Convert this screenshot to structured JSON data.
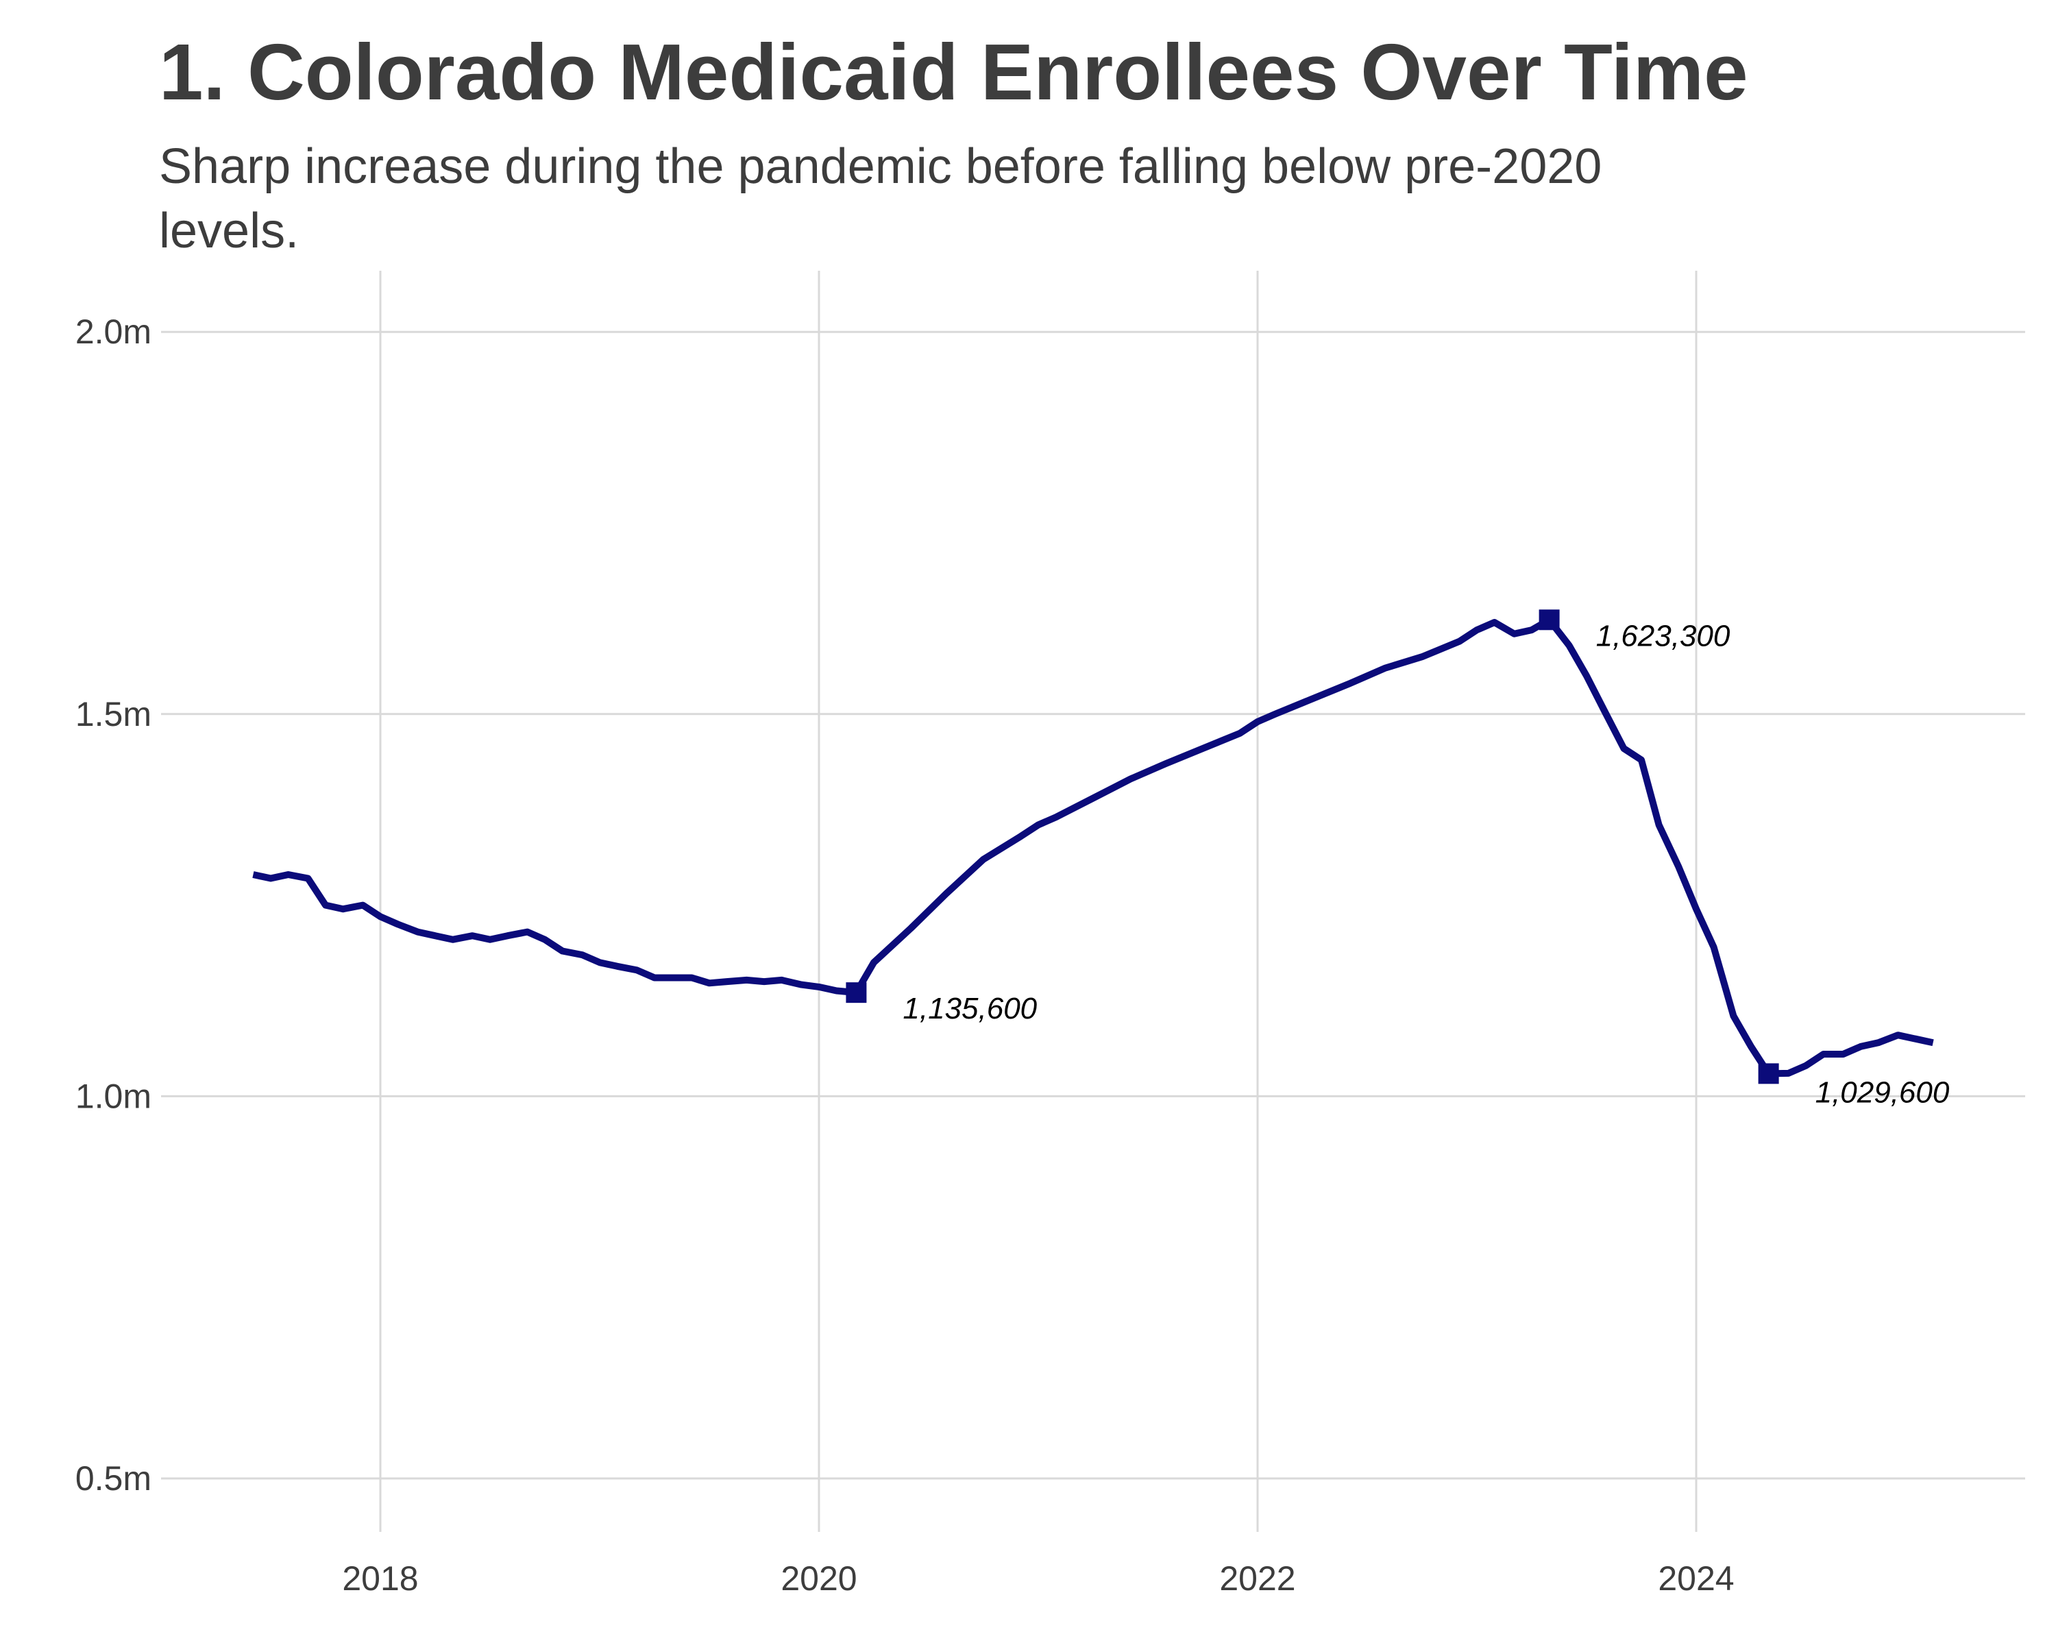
{
  "chart_data": {
    "type": "line",
    "title": "1. Colorado Medicaid Enrollees Over Time",
    "subtitle": "Sharp increase during the pandemic before falling below pre-2020 levels.",
    "xlabel": "",
    "ylabel": "",
    "xlim": [
      2017.0,
      2025.5
    ],
    "ylim": [
      0.43,
      2.08
    ],
    "x_ticks": [
      2018,
      2020,
      2022,
      2024
    ],
    "x_tick_labels": [
      "2018",
      "2020",
      "2022",
      "2024"
    ],
    "y_ticks": [
      0.5,
      1.0,
      1.5,
      2.0
    ],
    "y_tick_labels": [
      "0.5m",
      "1.0m",
      "1.5m",
      "2.0m"
    ],
    "grid": true,
    "colors": {
      "line": "#0b0b7a",
      "grid": "#d9d9d9",
      "text": "#3d3d3d"
    },
    "series": [
      {
        "x": [
          2017.42,
          2017.5,
          2017.58,
          2017.67,
          2017.75,
          2017.83,
          2017.92,
          2018.0,
          2018.08,
          2018.17,
          2018.25,
          2018.33,
          2018.42,
          2018.5,
          2018.58,
          2018.67,
          2018.75,
          2018.83,
          2018.92,
          2019.0,
          2019.08,
          2019.17,
          2019.25,
          2019.33,
          2019.42,
          2019.5,
          2019.58,
          2019.67,
          2019.75,
          2019.83,
          2019.92,
          2020.0,
          2020.08,
          2020.17,
          2020.25,
          2020.42,
          2020.58,
          2020.75,
          2020.92,
          2021.0,
          2021.08,
          2021.25,
          2021.42,
          2021.58,
          2021.75,
          2021.92,
          2022.0,
          2022.08,
          2022.25,
          2022.42,
          2022.58,
          2022.75,
          2022.92,
          2023.0,
          2023.08,
          2023.17,
          2023.25,
          2023.33,
          2023.42,
          2023.5,
          2023.58,
          2023.67,
          2023.75,
          2023.83,
          2023.92,
          2024.0,
          2024.08,
          2024.17,
          2024.25,
          2024.33,
          2024.42,
          2024.5,
          2024.58,
          2024.67,
          2024.75,
          2024.83,
          2024.92,
          2025.0,
          2025.08
        ],
        "y": [
          1.29,
          1.285,
          1.29,
          1.285,
          1.25,
          1.245,
          1.25,
          1.235,
          1.225,
          1.215,
          1.21,
          1.205,
          1.21,
          1.205,
          1.21,
          1.215,
          1.205,
          1.19,
          1.185,
          1.175,
          1.17,
          1.165,
          1.155,
          1.155,
          1.155,
          1.148,
          1.15,
          1.152,
          1.15,
          1.152,
          1.146,
          1.143,
          1.138,
          1.1356,
          1.175,
          1.22,
          1.265,
          1.31,
          1.34,
          1.355,
          1.365,
          1.39,
          1.415,
          1.435,
          1.455,
          1.475,
          1.49,
          1.5,
          1.52,
          1.54,
          1.56,
          1.575,
          1.595,
          1.61,
          1.62,
          1.605,
          1.61,
          1.6233,
          1.59,
          1.55,
          1.505,
          1.455,
          1.44,
          1.355,
          1.3,
          1.245,
          1.195,
          1.105,
          1.065,
          1.0296,
          1.03,
          1.04,
          1.055,
          1.055,
          1.065,
          1.07,
          1.08,
          1.075,
          1.07
        ]
      }
    ],
    "annotations": [
      {
        "x": 2020.17,
        "y": 1.1356,
        "label": "1,135,600"
      },
      {
        "x": 2023.33,
        "y": 1.6233,
        "label": "1,623,300"
      },
      {
        "x": 2024.33,
        "y": 1.0296,
        "label": "1,029,600"
      }
    ]
  }
}
